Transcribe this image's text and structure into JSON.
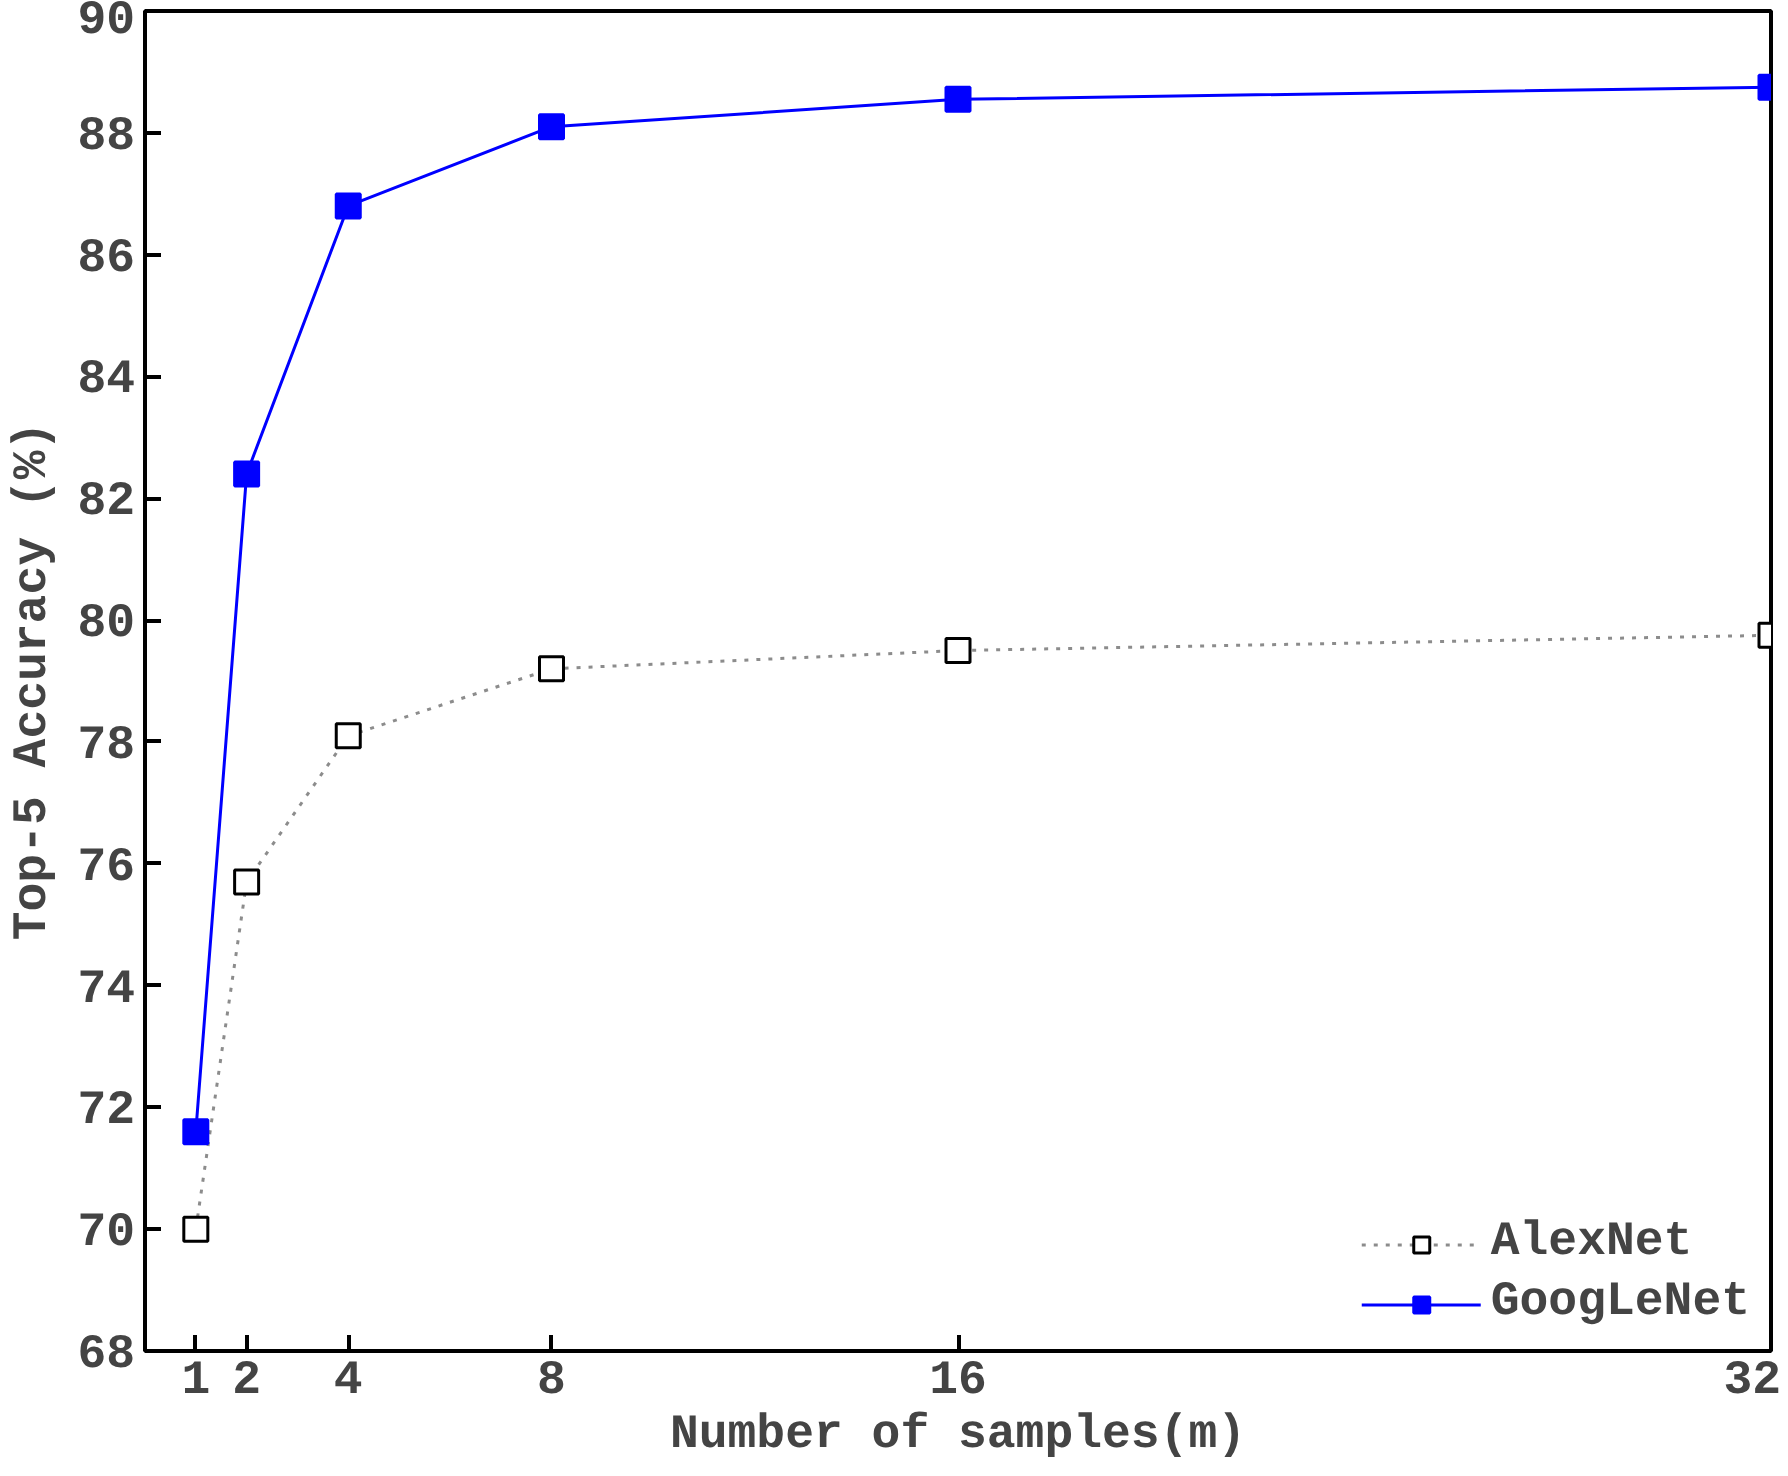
{
  "chart_data": {
    "type": "line",
    "xlabel": "Number of samples(m)",
    "ylabel": "Top-5 Accuracy (%)",
    "x": [
      1,
      2,
      4,
      8,
      16,
      32
    ],
    "series": [
      {
        "name": "AlexNet",
        "color": "#000000",
        "marker": "square",
        "line_style": "dotted",
        "values": [
          70.0,
          75.7,
          78.1,
          79.2,
          79.5,
          79.75
        ]
      },
      {
        "name": "GoogLeNet",
        "color": "#0000ff",
        "marker": "square",
        "line_style": "solid",
        "values": [
          71.6,
          82.4,
          86.8,
          88.1,
          88.55,
          88.75
        ]
      }
    ],
    "xlim": [
      0,
      32
    ],
    "xticks": [
      1,
      2,
      4,
      8,
      16,
      32
    ],
    "ylim": [
      68,
      90
    ],
    "yticks": [
      68,
      70,
      72,
      74,
      76,
      78,
      80,
      82,
      84,
      86,
      88,
      90
    ],
    "grid": false,
    "legend": "bottom right"
  }
}
